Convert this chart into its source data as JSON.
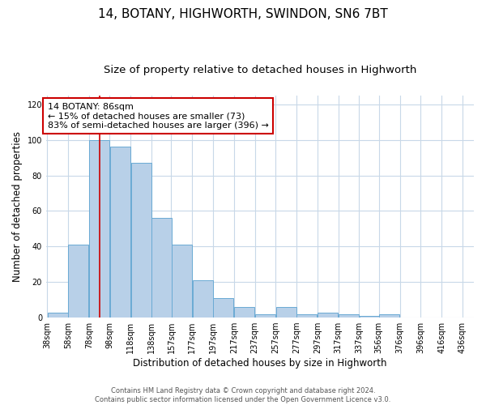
{
  "title": "14, BOTANY, HIGHWORTH, SWINDON, SN6 7BT",
  "subtitle": "Size of property relative to detached houses in Highworth",
  "xlabel": "Distribution of detached houses by size in Highworth",
  "ylabel": "Number of detached properties",
  "footer_line1": "Contains HM Land Registry data © Crown copyright and database right 2024.",
  "footer_line2": "Contains public sector information licensed under the Open Government Licence v3.0.",
  "bar_centers": [
    48,
    68,
    88,
    108,
    128,
    148,
    167,
    187,
    207,
    227,
    247,
    267,
    287,
    307,
    327,
    347,
    366,
    386,
    406,
    426
  ],
  "bar_heights": [
    3,
    41,
    100,
    96,
    87,
    56,
    41,
    21,
    11,
    6,
    2,
    6,
    2,
    3,
    2,
    1,
    2,
    0,
    0,
    0
  ],
  "bar_width": 19.5,
  "bar_color": "#b8d0e8",
  "bar_edgecolor": "#6aaad4",
  "annotation_text": "14 BOTANY: 86sqm\n← 15% of detached houses are smaller (73)\n83% of semi-detached houses are larger (396) →",
  "vline_x": 88,
  "vline_color": "#cc0000",
  "ylim": [
    0,
    125
  ],
  "yticks": [
    0,
    20,
    40,
    60,
    80,
    100,
    120
  ],
  "xtick_positions": [
    38,
    58,
    78,
    98,
    118,
    138,
    157,
    177,
    197,
    217,
    237,
    257,
    277,
    297,
    317,
    337,
    356,
    376,
    396,
    416,
    436
  ],
  "xtick_labels": [
    "38sqm",
    "58sqm",
    "78sqm",
    "98sqm",
    "118sqm",
    "138sqm",
    "157sqm",
    "177sqm",
    "197sqm",
    "217sqm",
    "237sqm",
    "257sqm",
    "277sqm",
    "297sqm",
    "317sqm",
    "337sqm",
    "356sqm",
    "376sqm",
    "396sqm",
    "416sqm",
    "436sqm"
  ],
  "xlim": [
    37,
    447
  ],
  "background_color": "#ffffff",
  "grid_color": "#c8d8e8",
  "title_fontsize": 11,
  "subtitle_fontsize": 9.5,
  "xlabel_fontsize": 8.5,
  "ylabel_fontsize": 8.5,
  "tick_fontsize": 7,
  "annotation_fontsize": 8,
  "footer_fontsize": 6
}
